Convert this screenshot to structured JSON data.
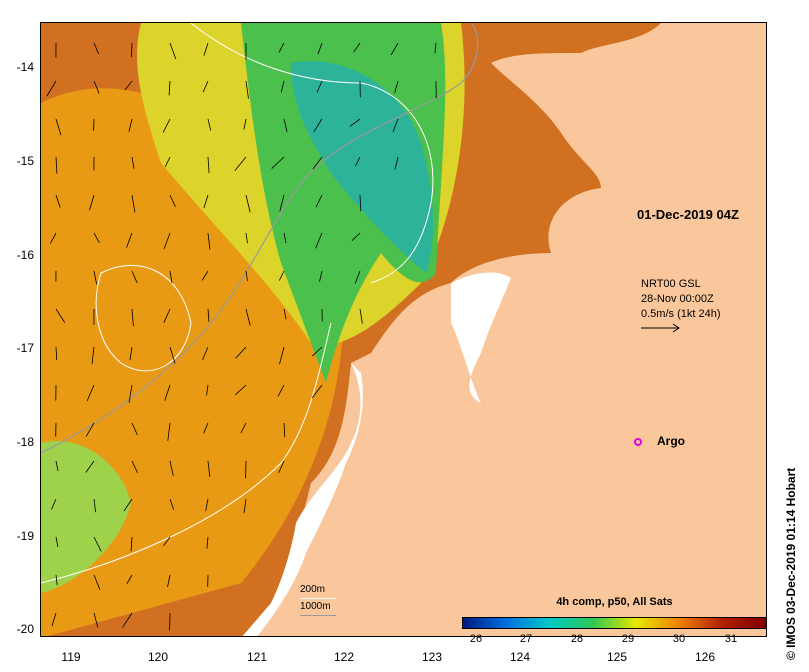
{
  "map": {
    "y_axis_labels": [
      "-14",
      "-15",
      "-16",
      "-17",
      "-18",
      "-19",
      "-20"
    ],
    "x_axis_labels": [
      "119",
      "120",
      "121",
      "122",
      "123",
      "124",
      "125",
      "126"
    ],
    "date_label": "01-Dec-2019 04Z",
    "current_info": {
      "line1": "NRT00 GSL",
      "line2": "28-Nov 00:00Z",
      "line3": "0.5m/s (1kt 24h)"
    },
    "argo_label": "Argo",
    "depth_legend": {
      "label1": "200m",
      "label2": "1000m"
    },
    "colorbar": {
      "title": "4h comp, p50, All Sats",
      "labels": [
        "26",
        "27",
        "28",
        "29",
        "30",
        "31"
      ],
      "colors": [
        "#001a80",
        "#0070e0",
        "#00c8c8",
        "#30c850",
        "#e8e800",
        "#f08000",
        "#b02000",
        "#800000"
      ]
    },
    "credit": "© IMOS 03-Dec-2019 01:14 Hobart",
    "colors": {
      "land": "#f9c79b",
      "warm": "#d27418",
      "green": "#30b35a",
      "yellow": "#d9dd2a"
    }
  }
}
